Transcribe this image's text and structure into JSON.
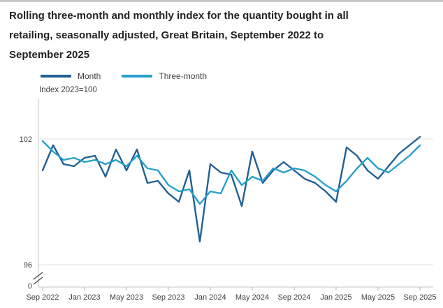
{
  "title": {
    "lines": [
      "Rolling three-month and monthly index for the quantity bought in all",
      "retailing, seasonally adjusted, Great Britain, September 2022 to",
      "September 2025"
    ]
  },
  "legend": {
    "items": [
      {
        "label": "Month",
        "color": "#206095"
      },
      {
        "label": "Three-month",
        "color": "#27A0CC"
      }
    ]
  },
  "y_axis": {
    "unit_label": "Index 2023=100",
    "tick_labels": [
      "102",
      "96",
      "0"
    ],
    "has_axis_break": true
  },
  "chart_data": {
    "type": "line",
    "title": "Rolling three-month and monthly index for the quantity bought in all retailing, seasonally adjusted, Great Britain, September 2022 to September 2025",
    "ylabel": "Index 2023=100",
    "ylim_displayed": [
      96,
      102
    ],
    "y_gridline_values": [
      102,
      96
    ],
    "y_tick_values": [
      102,
      96,
      0
    ],
    "axis_break": true,
    "grid": "horizontal-only",
    "legend_position": "top-left",
    "categories": [
      "Sep 2022",
      "Oct 2022",
      "Nov 2022",
      "Dec 2022",
      "Jan 2023",
      "Feb 2023",
      "Mar 2023",
      "Apr 2023",
      "May 2023",
      "Jun 2023",
      "Jul 2023",
      "Aug 2023",
      "Sep 2023",
      "Oct 2023",
      "Nov 2023",
      "Dec 2023",
      "Jan 2024",
      "Feb 2024",
      "Mar 2024",
      "Apr 2024",
      "May 2024",
      "Jun 2024",
      "Jul 2024",
      "Aug 2024",
      "Sep 2024",
      "Oct 2024",
      "Nov 2024",
      "Dec 2024",
      "Jan 2025",
      "Feb 2025",
      "Mar 2025",
      "Apr 2025",
      "May 2025",
      "Jun 2025",
      "Jul 2025",
      "Aug 2025",
      "Sep 2025"
    ],
    "x_tick_labels": [
      "Sep 2022",
      "Jan 2023",
      "May 2023",
      "Sep 2023",
      "Jan 2024",
      "May 2024",
      "Sep 2024",
      "Jan 2025",
      "May 2025",
      "Sep 2025"
    ],
    "x_tick_every_n_months": 4,
    "series": [
      {
        "name": "Month",
        "color": "#206095",
        "values": [
          100.5,
          101.7,
          100.8,
          100.7,
          101.1,
          101.2,
          100.2,
          101.5,
          100.5,
          101.5,
          99.9,
          100.0,
          99.4,
          99.0,
          100.5,
          97.1,
          100.8,
          100.4,
          100.3,
          98.8,
          101.4,
          99.9,
          100.5,
          100.9,
          100.5,
          100.1,
          99.9,
          99.5,
          99.0,
          101.6,
          101.2,
          100.5,
          100.1,
          100.7,
          101.3,
          101.7,
          102.1
        ]
      },
      {
        "name": "Three-month",
        "color": "#27A0CC",
        "values": [
          101.9,
          101.4,
          101.0,
          101.1,
          100.9,
          101.0,
          100.8,
          101.0,
          100.7,
          101.2,
          100.6,
          100.5,
          99.8,
          99.5,
          99.6,
          98.9,
          99.5,
          99.4,
          100.5,
          99.8,
          100.2,
          100.0,
          100.6,
          100.4,
          100.6,
          100.5,
          100.2,
          99.8,
          99.5,
          100.0,
          100.6,
          101.1,
          100.6,
          100.4,
          100.8,
          101.2,
          101.7
        ]
      }
    ],
    "colors": {
      "gridline": "#e2e2e2",
      "axis_line": "#c6c6c6",
      "tick_mark": "#b3b3b3",
      "tick_label": "#414042",
      "title_text": "#222222"
    }
  }
}
